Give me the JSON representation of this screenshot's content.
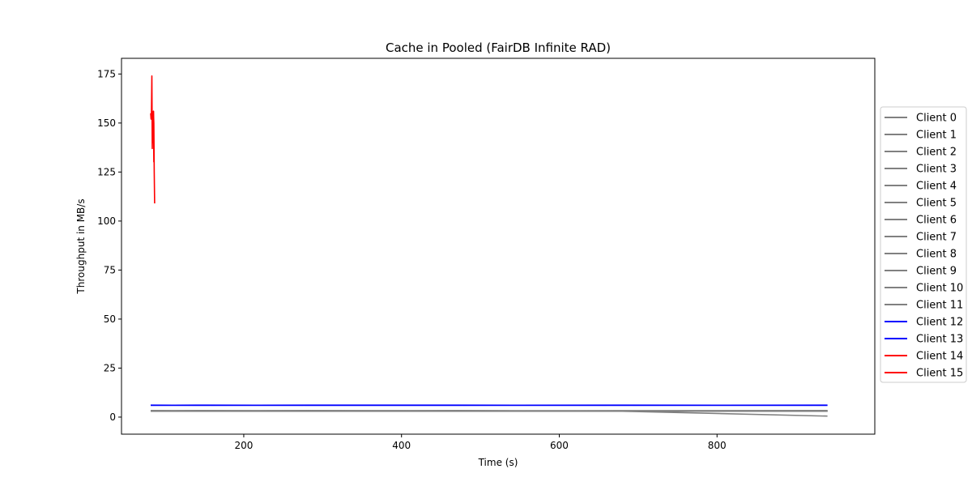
{
  "chart_data": {
    "type": "line",
    "title": "Cache in  Pooled (FairDB Infinite RAD)",
    "xlabel": "Time (s)",
    "ylabel": "Throughput in MB/s",
    "xlim": [
      45,
      1000
    ],
    "ylim": [
      -8.7,
      183
    ],
    "xticks": [
      200,
      400,
      600,
      800
    ],
    "yticks": [
      0,
      25,
      50,
      75,
      100,
      125,
      150,
      175
    ],
    "grid": false,
    "legend_position": "right, outside plot area",
    "series": [
      {
        "name": "Client 0",
        "color": "#808080",
        "x": [
          82,
          140,
          282,
          470,
          680,
          940
        ],
        "y": [
          3.2,
          3.1,
          3.3,
          3.2,
          3.1,
          3.2
        ]
      },
      {
        "name": "Client 1",
        "color": "#808080",
        "x": [
          82,
          140,
          282,
          470,
          680,
          940
        ],
        "y": [
          3.0,
          3.1,
          3.0,
          3.1,
          3.0,
          3.0
        ]
      },
      {
        "name": "Client 2",
        "color": "#808080",
        "x": [
          82,
          140,
          282,
          470,
          680,
          940
        ],
        "y": [
          3.1,
          3.2,
          3.1,
          3.0,
          3.2,
          3.1
        ]
      },
      {
        "name": "Client 3",
        "color": "#808080",
        "x": [
          82,
          140,
          282,
          470,
          680,
          940
        ],
        "y": [
          3.3,
          3.2,
          3.2,
          3.3,
          3.2,
          3.3
        ]
      },
      {
        "name": "Client 4",
        "color": "#808080",
        "x": [
          82,
          140,
          282,
          470,
          680,
          940
        ],
        "y": [
          3.0,
          3.0,
          3.1,
          3.0,
          3.1,
          3.0
        ]
      },
      {
        "name": "Client 5",
        "color": "#808080",
        "x": [
          82,
          140,
          282,
          470,
          680,
          940
        ],
        "y": [
          3.2,
          3.1,
          3.2,
          3.2,
          3.1,
          3.2
        ]
      },
      {
        "name": "Client 6",
        "color": "#808080",
        "x": [
          82,
          140,
          282,
          470,
          680,
          940
        ],
        "y": [
          3.1,
          3.1,
          3.0,
          3.1,
          3.1,
          3.1
        ]
      },
      {
        "name": "Client 7",
        "color": "#808080",
        "x": [
          82,
          140,
          282,
          470,
          680,
          940
        ],
        "y": [
          3.2,
          3.3,
          3.2,
          3.1,
          3.2,
          3.2
        ]
      },
      {
        "name": "Client 8",
        "color": "#808080",
        "x": [
          82,
          140,
          282,
          470,
          680,
          940
        ],
        "y": [
          3.0,
          3.1,
          3.1,
          3.0,
          3.0,
          3.0
        ]
      },
      {
        "name": "Client 9",
        "color": "#808080",
        "x": [
          82,
          140,
          282,
          470,
          680,
          940
        ],
        "y": [
          3.1,
          3.2,
          3.1,
          3.2,
          3.1,
          3.1
        ]
      },
      {
        "name": "Client 10",
        "color": "#808080",
        "x": [
          82,
          140,
          282,
          470,
          680,
          940
        ],
        "y": [
          3.2,
          3.1,
          3.2,
          3.1,
          3.2,
          3.2
        ]
      },
      {
        "name": "Client 11",
        "color": "#808080",
        "x": [
          82,
          140,
          282,
          470,
          680,
          940
        ],
        "y": [
          3.1,
          3.0,
          3.1,
          3.1,
          3.0,
          0.5
        ]
      },
      {
        "name": "Client 12",
        "color": "#0000ff",
        "x": [
          82,
          140,
          282,
          470,
          680,
          940
        ],
        "y": [
          6.1,
          6.0,
          6.1,
          6.1,
          6.0,
          6.1
        ]
      },
      {
        "name": "Client 13",
        "color": "#0000ff",
        "x": [
          82,
          140,
          282,
          470,
          680,
          940
        ],
        "y": [
          6.0,
          6.1,
          6.0,
          6.0,
          6.1,
          6.0
        ]
      },
      {
        "name": "Client 14",
        "color": "#ff0000",
        "x": [
          82,
          82.5,
          83,
          83.5,
          84,
          84.5,
          85,
          85.5,
          86
        ],
        "y": [
          155,
          152,
          156,
          174,
          137,
          155,
          141,
          156,
          130
        ]
      },
      {
        "name": "Client 15",
        "color": "#ff0000",
        "x": [
          84,
          84.5,
          85,
          85.5,
          86,
          86.5,
          87
        ],
        "y": [
          152,
          155,
          140,
          156,
          150,
          125,
          109
        ]
      }
    ]
  }
}
